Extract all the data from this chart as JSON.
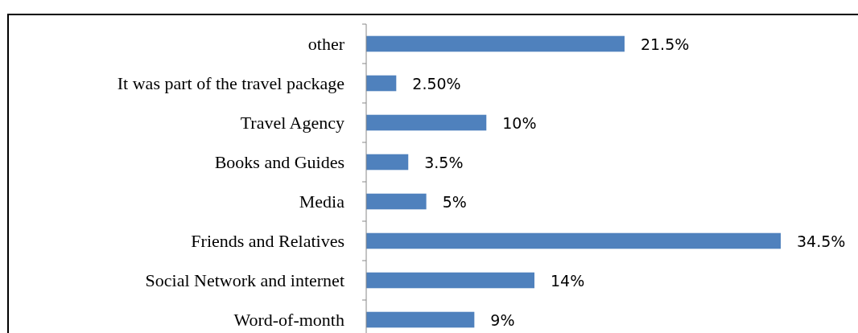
{
  "chart_data": {
    "type": "bar",
    "orientation": "horizontal",
    "categories": [
      "other",
      "It was part of the travel package",
      "Travel Agency",
      "Books and Guides",
      "Media",
      "Friends  and Relatives",
      "Social Network and internet",
      "Word-of-month"
    ],
    "values": [
      21.5,
      2.5,
      10,
      3.5,
      5,
      34.5,
      14,
      9
    ],
    "value_labels": [
      "21.5%",
      "2.50%",
      "10%",
      "3.5%",
      "5%",
      "34.5%",
      "14%",
      "9%"
    ],
    "color": "#4f81bd"
  }
}
